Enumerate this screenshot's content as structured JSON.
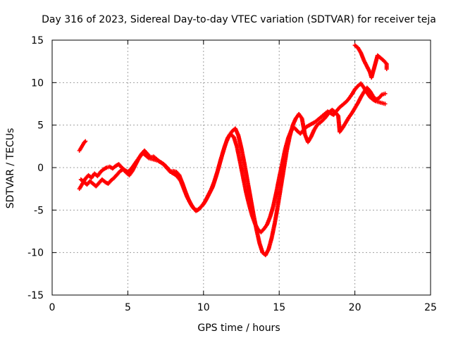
{
  "chart_data": {
    "type": "scatter",
    "title": "Day 316 of 2023, Sidereal Day-to-day VTEC variation (SDTVAR) for receiver teja",
    "xlabel": "GPS time / hours",
    "ylabel": "SDTVAR / TECUs",
    "xlim": [
      0,
      25
    ],
    "ylim": [
      -15,
      15
    ],
    "xticks": [
      0,
      5,
      10,
      15,
      20,
      25
    ],
    "yticks": [
      -15,
      -10,
      -5,
      0,
      5,
      10,
      15
    ],
    "grid": true,
    "marker": "plus",
    "series": [
      {
        "name": "SDTVAR track A",
        "color": "#ff0000",
        "points": [
          [
            1.8,
            -2.5
          ],
          [
            1.9,
            -2.2
          ],
          [
            2.0,
            -1.9
          ],
          [
            2.2,
            -1.3
          ],
          [
            2.4,
            -0.9
          ],
          [
            2.6,
            -1.2
          ],
          [
            2.8,
            -0.7
          ],
          [
            3.0,
            -1.0
          ],
          [
            3.2,
            -0.5
          ],
          [
            3.4,
            -0.2
          ],
          [
            3.6,
            0.0
          ],
          [
            3.8,
            0.1
          ],
          [
            4.0,
            -0.1
          ],
          [
            4.2,
            0.2
          ],
          [
            4.4,
            0.4
          ],
          [
            4.6,
            0.0
          ],
          [
            4.8,
            -0.3
          ],
          [
            5.0,
            -0.5
          ],
          [
            5.2,
            -0.2
          ],
          [
            5.4,
            0.3
          ],
          [
            5.6,
            0.8
          ],
          [
            5.8,
            1.3
          ],
          [
            6.0,
            1.7
          ],
          [
            6.2,
            1.4
          ],
          [
            6.4,
            1.1
          ],
          [
            6.6,
            1.0
          ],
          [
            6.8,
            0.9
          ],
          [
            7.0,
            0.8
          ],
          [
            7.2,
            0.6
          ],
          [
            7.4,
            0.3
          ],
          [
            7.6,
            -0.1
          ],
          [
            7.8,
            -0.5
          ],
          [
            8.0,
            -0.4
          ],
          [
            8.2,
            -0.5
          ],
          [
            8.4,
            -0.9
          ],
          [
            8.6,
            -1.8
          ],
          [
            8.8,
            -2.8
          ],
          [
            9.0,
            -3.7
          ],
          [
            9.2,
            -4.4
          ],
          [
            9.4,
            -4.9
          ],
          [
            9.6,
            -5.0
          ],
          [
            9.8,
            -4.7
          ],
          [
            10.0,
            -4.3
          ],
          [
            10.2,
            -3.7
          ],
          [
            10.4,
            -3.0
          ],
          [
            10.6,
            -2.3
          ],
          [
            10.8,
            -1.2
          ],
          [
            11.0,
            0.0
          ],
          [
            11.2,
            1.3
          ],
          [
            11.4,
            2.5
          ],
          [
            11.6,
            3.5
          ],
          [
            11.8,
            3.9
          ],
          [
            12.0,
            3.6
          ],
          [
            12.2,
            2.5
          ],
          [
            12.4,
            0.8
          ],
          [
            12.6,
            -1.0
          ],
          [
            12.8,
            -2.8
          ],
          [
            13.0,
            -4.3
          ],
          [
            13.2,
            -5.6
          ],
          [
            13.4,
            -6.6
          ],
          [
            13.6,
            -7.3
          ],
          [
            13.8,
            -7.6
          ],
          [
            14.0,
            -7.2
          ],
          [
            14.2,
            -6.7
          ],
          [
            14.4,
            -5.8
          ],
          [
            14.6,
            -4.6
          ],
          [
            14.8,
            -3.0
          ],
          [
            15.0,
            -1.2
          ],
          [
            15.2,
            0.5
          ],
          [
            15.4,
            2.2
          ],
          [
            15.6,
            3.5
          ],
          [
            15.8,
            4.4
          ],
          [
            16.0,
            4.7
          ],
          [
            16.2,
            4.3
          ],
          [
            16.4,
            4.0
          ],
          [
            16.6,
            4.4
          ],
          [
            16.8,
            4.8
          ],
          [
            17.0,
            5.0
          ],
          [
            17.2,
            5.2
          ],
          [
            17.4,
            5.4
          ],
          [
            17.6,
            5.7
          ],
          [
            17.8,
            6.0
          ],
          [
            18.0,
            6.3
          ],
          [
            18.2,
            6.6
          ],
          [
            18.4,
            6.4
          ],
          [
            18.6,
            6.2
          ],
          [
            18.8,
            6.7
          ],
          [
            19.0,
            7.1
          ],
          [
            19.2,
            7.4
          ],
          [
            19.4,
            7.7
          ],
          [
            19.6,
            8.1
          ],
          [
            19.8,
            8.6
          ],
          [
            20.0,
            9.2
          ],
          [
            20.2,
            9.6
          ],
          [
            20.4,
            9.9
          ],
          [
            20.6,
            9.4
          ],
          [
            20.8,
            8.8
          ],
          [
            21.0,
            8.3
          ],
          [
            21.2,
            8.0
          ],
          [
            21.4,
            7.8
          ],
          [
            21.6,
            7.7
          ],
          [
            21.8,
            7.6
          ],
          [
            22.0,
            7.5
          ]
        ]
      },
      {
        "name": "SDTVAR track B",
        "color": "#ff0000",
        "points": [
          [
            1.8,
            2.0
          ],
          [
            1.9,
            2.3
          ],
          [
            2.0,
            2.6
          ],
          [
            2.1,
            2.9
          ],
          [
            2.2,
            3.1
          ],
          [
            1.9,
            -1.4
          ],
          [
            2.1,
            -1.7
          ],
          [
            2.3,
            -2.0
          ],
          [
            2.5,
            -1.6
          ],
          [
            2.7,
            -1.9
          ],
          [
            2.9,
            -2.2
          ],
          [
            3.1,
            -1.8
          ],
          [
            3.3,
            -1.4
          ],
          [
            3.5,
            -1.7
          ],
          [
            3.7,
            -1.9
          ],
          [
            3.9,
            -1.5
          ],
          [
            4.1,
            -1.2
          ],
          [
            4.3,
            -0.8
          ],
          [
            4.5,
            -0.4
          ],
          [
            4.7,
            -0.2
          ],
          [
            4.9,
            -0.6
          ],
          [
            5.1,
            -0.9
          ],
          [
            5.3,
            -0.4
          ],
          [
            5.5,
            0.3
          ],
          [
            5.7,
            1.0
          ],
          [
            5.9,
            1.6
          ],
          [
            6.1,
            2.0
          ],
          [
            6.3,
            1.6
          ],
          [
            6.5,
            1.2
          ],
          [
            6.7,
            1.3
          ],
          [
            6.9,
            1.0
          ],
          [
            7.1,
            0.7
          ],
          [
            7.3,
            0.5
          ],
          [
            7.5,
            0.2
          ],
          [
            7.7,
            -0.2
          ],
          [
            7.9,
            -0.6
          ],
          [
            8.1,
            -0.8
          ],
          [
            8.3,
            -1.1
          ],
          [
            8.5,
            -1.6
          ],
          [
            8.7,
            -2.5
          ],
          [
            8.9,
            -3.4
          ],
          [
            9.1,
            -4.1
          ],
          [
            9.3,
            -4.7
          ],
          [
            9.5,
            -5.1
          ],
          [
            9.7,
            -4.9
          ],
          [
            9.9,
            -4.5
          ],
          [
            10.1,
            -4.0
          ],
          [
            10.3,
            -3.3
          ],
          [
            10.5,
            -2.6
          ],
          [
            10.7,
            -1.7
          ],
          [
            10.9,
            -0.6
          ],
          [
            11.1,
            0.7
          ],
          [
            11.3,
            1.9
          ],
          [
            11.5,
            3.0
          ],
          [
            11.7,
            3.8
          ],
          [
            11.9,
            4.3
          ],
          [
            12.1,
            4.6
          ],
          [
            12.3,
            3.8
          ],
          [
            12.5,
            2.3
          ],
          [
            12.7,
            0.5
          ],
          [
            12.9,
            -1.5
          ],
          [
            13.1,
            -3.5
          ],
          [
            13.3,
            -5.5
          ],
          [
            13.5,
            -7.3
          ],
          [
            13.7,
            -8.9
          ],
          [
            13.9,
            -10.0
          ],
          [
            14.1,
            -10.3
          ],
          [
            14.3,
            -9.6
          ],
          [
            14.5,
            -8.3
          ],
          [
            14.7,
            -6.6
          ],
          [
            14.9,
            -4.6
          ],
          [
            15.1,
            -2.4
          ],
          [
            15.3,
            -0.2
          ],
          [
            15.5,
            2.0
          ],
          [
            15.7,
            3.7
          ],
          [
            15.9,
            5.0
          ],
          [
            16.1,
            5.8
          ],
          [
            16.3,
            6.3
          ],
          [
            16.5,
            5.8
          ],
          [
            16.7,
            3.9
          ],
          [
            16.9,
            3.0
          ],
          [
            17.1,
            3.6
          ],
          [
            17.3,
            4.4
          ],
          [
            17.5,
            5.0
          ],
          [
            17.7,
            5.3
          ],
          [
            17.9,
            5.6
          ],
          [
            18.1,
            6.0
          ],
          [
            18.3,
            6.5
          ],
          [
            18.5,
            6.8
          ],
          [
            18.7,
            6.5
          ],
          [
            18.9,
            6.1
          ],
          [
            19.0,
            4.2
          ],
          [
            19.2,
            4.7
          ],
          [
            19.4,
            5.3
          ],
          [
            19.6,
            5.9
          ],
          [
            19.8,
            6.4
          ],
          [
            20.0,
            7.0
          ],
          [
            20.2,
            7.6
          ],
          [
            20.4,
            8.3
          ],
          [
            20.6,
            8.9
          ],
          [
            20.8,
            9.4
          ],
          [
            21.0,
            9.0
          ],
          [
            21.2,
            8.4
          ],
          [
            21.4,
            8.0
          ],
          [
            21.6,
            8.2
          ],
          [
            21.8,
            8.6
          ],
          [
            22.0,
            8.7
          ],
          [
            20.0,
            14.4
          ],
          [
            20.2,
            14.1
          ],
          [
            20.4,
            13.5
          ],
          [
            20.6,
            12.6
          ],
          [
            20.8,
            11.9
          ],
          [
            21.0,
            11.2
          ],
          [
            21.1,
            10.6
          ],
          [
            21.5,
            13.2
          ],
          [
            21.7,
            12.9
          ],
          [
            21.9,
            12.6
          ],
          [
            22.1,
            12.2
          ],
          [
            22.1,
            11.6
          ]
        ]
      }
    ]
  }
}
